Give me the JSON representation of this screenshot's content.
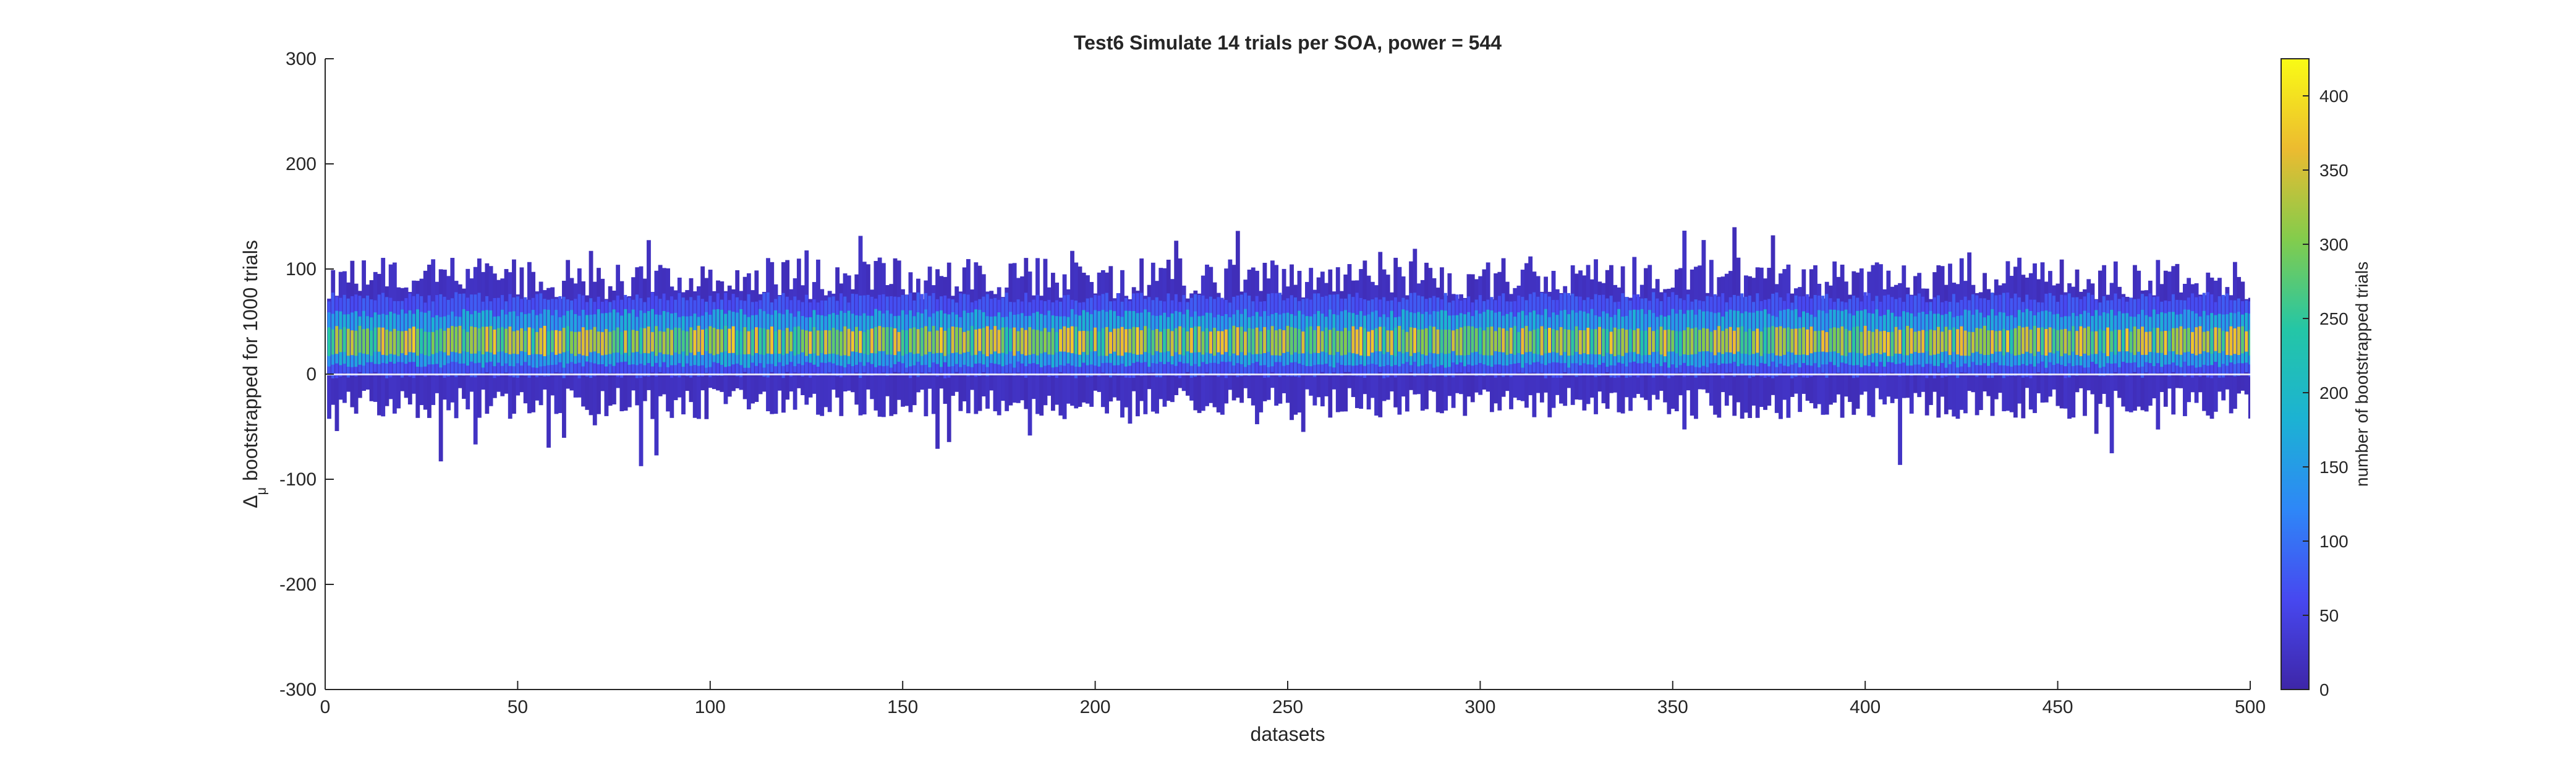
{
  "chart_data": {
    "type": "heatmap",
    "title": "Test6 Simulate 14 trials per SOA, power = 544",
    "xlabel": "datasets",
    "ylabel_prefix": "Δ",
    "ylabel_subscript": "μ",
    "ylabel_suffix": "bootstrapped for 1000 trials",
    "xlim": [
      0,
      500
    ],
    "ylim": [
      -300,
      300
    ],
    "x_ticks": [
      "0",
      "50",
      "100",
      "150",
      "200",
      "250",
      "300",
      "350",
      "400",
      "450",
      "500"
    ],
    "y_ticks": [
      "-300",
      "-200",
      "-100",
      "0",
      "100",
      "200",
      "300"
    ],
    "grid": false,
    "n_datasets": 500,
    "typical_range": [
      -25,
      85
    ],
    "extreme_range": [
      -88,
      142
    ],
    "dense_center": 30,
    "colorbar": {
      "label": "number of bootstrapped trials",
      "range": [
        0,
        425
      ],
      "ticks": [
        "0",
        "50",
        "100",
        "150",
        "200",
        "250",
        "300",
        "350",
        "400"
      ],
      "colormap": "parula",
      "colors": [
        "#3e26a8",
        "#4748f0",
        "#2e87f7",
        "#1cb2d3",
        "#24c6a6",
        "#83cc4c",
        "#ecbb30",
        "#f9fb15"
      ]
    }
  }
}
